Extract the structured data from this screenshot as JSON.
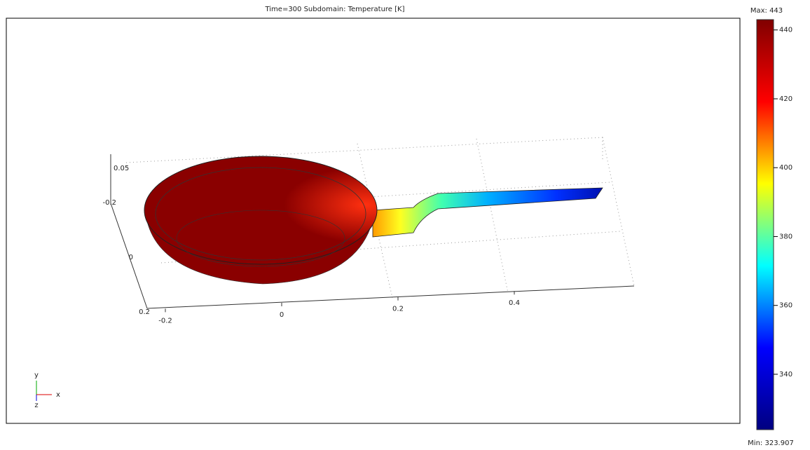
{
  "chart_data": {
    "type": "surface3d",
    "title": "Time=300    Subdomain: Temperature [K]",
    "xticks": [
      -0.2,
      0,
      0.2,
      0.4
    ],
    "yticks": [
      0.2,
      0,
      -0.2
    ],
    "zticks": [
      0.05
    ],
    "triad": {
      "x": "x",
      "y": "y",
      "z": "z"
    },
    "colorbar": {
      "ylim": [
        323.907,
        443
      ],
      "yticks": [
        340,
        360,
        380,
        400,
        420,
        440
      ],
      "max_label": {
        "value": 443,
        "label": "Max: 443"
      },
      "min_label": {
        "value": 323.907,
        "label": "Min: 323.907"
      },
      "colormap": [
        "#800000",
        "#ff0000",
        "#ffff00",
        "#00ffff",
        "#0000ff",
        "#000080"
      ]
    }
  }
}
